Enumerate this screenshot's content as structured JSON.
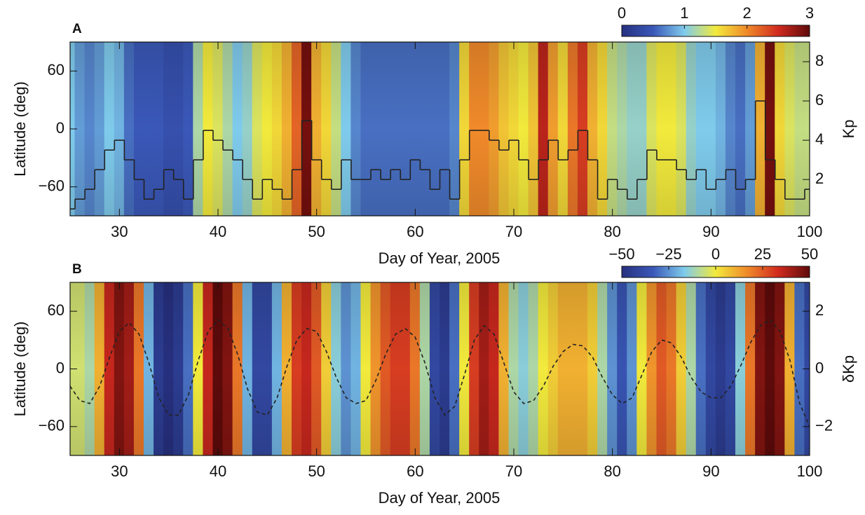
{
  "chart_data": [
    {
      "type": "heatmap",
      "panel": "A",
      "x_label": "Day of Year, 2005",
      "y_label": "Latitude (deg)",
      "y2_label": "Kp",
      "xlim": [
        25,
        100
      ],
      "xticks": [
        30,
        40,
        50,
        60,
        70,
        80,
        90,
        100
      ],
      "ylim": [
        -90,
        90
      ],
      "yticks": [
        {
          "value": -60,
          "label": "−60"
        },
        0,
        60
      ],
      "y2lim": [
        0.15,
        9
      ],
      "y2ticks": [
        2,
        4,
        6,
        8
      ],
      "colormap": [
        "#26307f",
        "#3a58b8",
        "#7fcbec",
        "#f2ea3c",
        "#f08a2a",
        "#d12a1f",
        "#5e0a0a"
      ],
      "colorbar": {
        "lim": [
          0,
          3
        ],
        "ticks": [
          0,
          1,
          2,
          3
        ]
      },
      "x": [
        25,
        26,
        27,
        28,
        29,
        30,
        31,
        32,
        33,
        34,
        35,
        36,
        37,
        38,
        39,
        40,
        41,
        42,
        43,
        44,
        45,
        46,
        47,
        48,
        49,
        50,
        51,
        52,
        53,
        54,
        55,
        56,
        57,
        58,
        59,
        60,
        61,
        62,
        63,
        64,
        65,
        66,
        67,
        68,
        69,
        70,
        71,
        72,
        73,
        74,
        75,
        76,
        77,
        78,
        79,
        80,
        81,
        82,
        83,
        84,
        85,
        86,
        87,
        88,
        89,
        90,
        91,
        92,
        93,
        94,
        95,
        96,
        97,
        98,
        99,
        100
      ],
      "values": [
        1.0,
        0.8,
        0.7,
        0.8,
        1.0,
        0.9,
        0.6,
        0.5,
        0.5,
        0.5,
        0.4,
        0.4,
        0.5,
        1.2,
        1.5,
        1.4,
        1.2,
        1.0,
        1.1,
        1.4,
        1.5,
        1.6,
        1.8,
        2.2,
        2.9,
        1.8,
        1.6,
        1.3,
        1.0,
        0.7,
        0.6,
        0.6,
        0.6,
        0.6,
        0.6,
        0.6,
        0.6,
        0.6,
        0.6,
        0.7,
        1.6,
        2.0,
        2.0,
        1.9,
        1.7,
        1.6,
        1.5,
        1.7,
        2.6,
        1.9,
        1.6,
        2.1,
        2.4,
        1.8,
        1.6,
        1.3,
        1.2,
        1.1,
        1.1,
        1.4,
        1.5,
        1.5,
        1.4,
        1.1,
        1.0,
        1.0,
        0.9,
        0.7,
        0.6,
        0.8,
        1.8,
        2.9,
        1.6,
        1.4,
        1.3,
        1.3
      ],
      "series": [
        {
          "axis": "y2",
          "color": "#222222",
          "step": true,
          "dashed": false,
          "values": [
            0.5,
            1,
            1.5,
            2.5,
            3.5,
            4,
            3,
            2,
            1,
            1.5,
            2.5,
            2,
            1,
            3,
            4.5,
            4,
            3.5,
            3,
            2,
            1,
            2,
            1.5,
            1,
            2.5,
            5,
            3,
            2,
            1.5,
            3,
            2,
            2,
            2.5,
            2,
            2.5,
            2,
            3,
            2.5,
            1.5,
            2.5,
            1,
            3,
            4.5,
            4.5,
            4,
            3.5,
            4,
            3,
            2,
            3,
            4,
            3,
            3.5,
            4.5,
            3,
            1,
            2,
            1.5,
            1,
            2,
            3.5,
            3,
            3,
            2.5,
            2,
            2.5,
            1.5,
            2,
            2.5,
            1.5,
            2,
            6,
            3,
            2,
            1,
            1,
            1.5
          ]
        }
      ]
    },
    {
      "type": "heatmap",
      "panel": "B",
      "x_label": "Day of Year, 2005",
      "y_label": "Latitude (deg)",
      "y2_label": "δKp",
      "xlim": [
        25,
        100
      ],
      "xticks": [
        30,
        40,
        50,
        60,
        70,
        80,
        90,
        100
      ],
      "ylim": [
        -90,
        90
      ],
      "yticks": [
        {
          "value": -60,
          "label": "−60"
        },
        0,
        60
      ],
      "y2lim": [
        -3,
        3
      ],
      "y2ticks": [
        {
          "value": -2,
          "label": "−2"
        },
        0,
        2
      ],
      "colormap": [
        "#26307f",
        "#3a58b8",
        "#7fcbec",
        "#f2ea3c",
        "#f08a2a",
        "#d12a1f",
        "#5e0a0a"
      ],
      "colorbar": {
        "lim": [
          -50,
          50
        ],
        "ticks": [
          {
            "value": -50,
            "label": "−50"
          },
          {
            "value": -25,
            "label": "−25"
          },
          0,
          25,
          50
        ]
      },
      "x": [
        25,
        26,
        27,
        28,
        29,
        30,
        31,
        32,
        33,
        34,
        35,
        36,
        37,
        38,
        39,
        40,
        41,
        42,
        43,
        44,
        45,
        46,
        47,
        48,
        49,
        50,
        51,
        52,
        53,
        54,
        55,
        56,
        57,
        58,
        59,
        60,
        61,
        62,
        63,
        64,
        65,
        66,
        67,
        68,
        69,
        70,
        71,
        72,
        73,
        74,
        75,
        76,
        77,
        78,
        79,
        80,
        81,
        82,
        83,
        84,
        85,
        86,
        87,
        88,
        89,
        90,
        91,
        92,
        93,
        94,
        95,
        96,
        97,
        98,
        99,
        100
      ],
      "values": [
        -5,
        -5,
        -10,
        10,
        35,
        45,
        40,
        20,
        -20,
        -45,
        -50,
        -45,
        -30,
        0,
        35,
        50,
        45,
        20,
        -20,
        -40,
        -40,
        -20,
        10,
        30,
        35,
        25,
        5,
        -15,
        -25,
        -20,
        0,
        15,
        25,
        30,
        30,
        20,
        -10,
        -40,
        -45,
        -30,
        0,
        30,
        40,
        35,
        10,
        -10,
        -15,
        -10,
        0,
        5,
        10,
        10,
        10,
        5,
        -10,
        -25,
        -35,
        -25,
        0,
        15,
        25,
        20,
        5,
        -10,
        -30,
        -40,
        -45,
        -40,
        -15,
        20,
        45,
        50,
        45,
        10,
        -30,
        -40
      ],
      "series": [
        {
          "axis": "y2",
          "color": "#222222",
          "step": false,
          "dashed": true,
          "values": [
            -0.6,
            -1.1,
            -1.2,
            -0.6,
            0.4,
            1.3,
            1.6,
            1.2,
            0.2,
            -1.0,
            -1.6,
            -1.6,
            -0.9,
            0.3,
            1.3,
            1.7,
            1.4,
            0.5,
            -0.7,
            -1.5,
            -1.6,
            -1.0,
            0.1,
            1.0,
            1.4,
            1.3,
            0.6,
            -0.3,
            -1.0,
            -1.2,
            -1.1,
            -0.4,
            0.5,
            1.2,
            1.4,
            1.1,
            0.2,
            -1.0,
            -1.6,
            -1.3,
            -0.2,
            1.0,
            1.5,
            1.2,
            0.2,
            -0.8,
            -1.2,
            -1.1,
            -0.6,
            0.1,
            0.6,
            0.85,
            0.8,
            0.4,
            -0.3,
            -0.9,
            -1.2,
            -1.0,
            -0.2,
            0.6,
            1.0,
            0.9,
            0.4,
            -0.3,
            -0.8,
            -1.0,
            -1.0,
            -0.6,
            0.1,
            0.9,
            1.5,
            1.7,
            1.3,
            0.3,
            -1.2,
            -2.0
          ]
        }
      ]
    }
  ]
}
